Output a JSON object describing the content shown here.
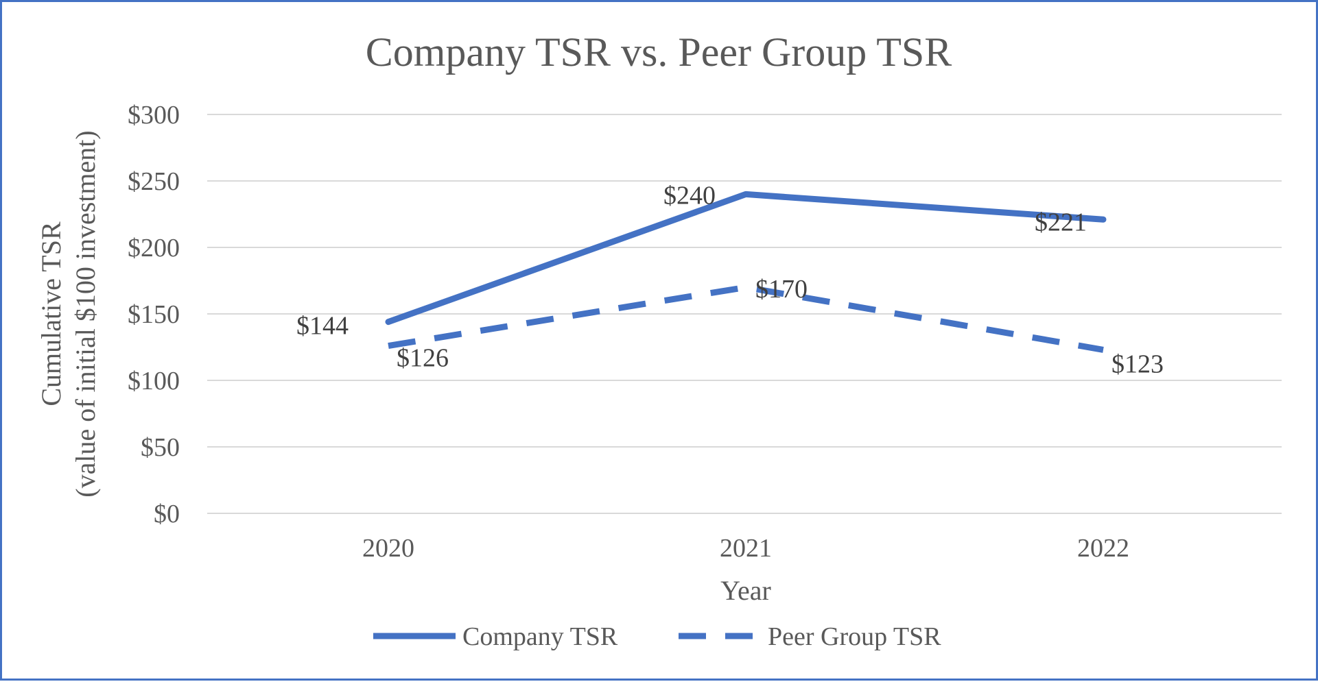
{
  "chart_data": {
    "type": "line",
    "title": "Company TSR vs. Peer Group TSR",
    "xlabel": "Year",
    "ylabel": [
      "Cumulative TSR",
      "(value of initial $100 investment)"
    ],
    "categories": [
      "2020",
      "2021",
      "2022"
    ],
    "ylim": [
      0,
      300
    ],
    "yticks": [
      0,
      50,
      100,
      150,
      200,
      250,
      300
    ],
    "ytick_labels": [
      "$0",
      "$50",
      "$100",
      "$150",
      "$200",
      "$250",
      "$300"
    ],
    "grid": true,
    "legend": "bottom-center",
    "series": [
      {
        "name": "Company TSR",
        "values": [
          144,
          240,
          221
        ],
        "labels": [
          "$144",
          "$240",
          "$221"
        ],
        "style": "solid",
        "color": "#4472c4"
      },
      {
        "name": "Peer Group TSR",
        "values": [
          126,
          170,
          123
        ],
        "labels": [
          "$126",
          "$170",
          "$123"
        ],
        "style": "dashed",
        "color": "#4472c4"
      }
    ]
  },
  "colors": {
    "border": "#4472c4",
    "grid": "#d9d9d9",
    "text": "#595959",
    "title": "#595959",
    "data_label": "#404040"
  }
}
